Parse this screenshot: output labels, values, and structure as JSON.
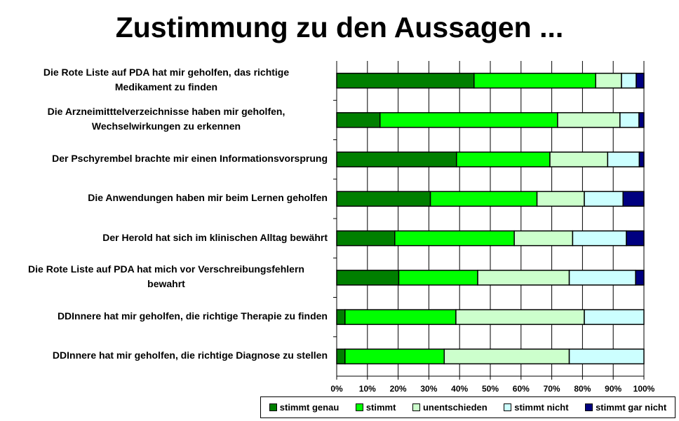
{
  "chart_data": {
    "type": "bar",
    "orientation": "horizontal",
    "stacked": "percent",
    "title": "Zustimmung zu den Aussagen ...",
    "xlabel": "",
    "ylabel": "",
    "xlim": [
      0,
      100
    ],
    "x_ticks": [
      "0%",
      "10%",
      "20%",
      "30%",
      "40%",
      "50%",
      "60%",
      "70%",
      "80%",
      "90%",
      "100%"
    ],
    "grid": "vertical",
    "legend_position": "bottom",
    "categories": [
      "Die Rote Liste auf PDA hat mir geholfen, das richtige Medikament zu finden",
      "Die Arzneimitttelverzeichnisse haben mir geholfen, Wechselwirkungen zu erkennen",
      "Der Pschyrembel brachte mir einen Informationsvorsprung",
      "Die Anwendungen haben mir beim Lernen geholfen",
      "Der Herold hat sich im klinischen Alltag bewährt",
      "Die Rote Liste auf PDA hat mich vor Verschreibungsfehlern bewahrt",
      "DDInnere hat mir geholfen, die richtige Therapie zu finden",
      "DDInnere hat mir geholfen, die richtige Diagnose zu stellen"
    ],
    "category_lines": [
      [
        "Die Rote Liste auf PDA hat mir geholfen, das richtige",
        "Medikament zu finden"
      ],
      [
        "Die Arzneimitttelverzeichnisse haben mir geholfen,",
        "Wechselwirkungen zu erkennen"
      ],
      [
        "Der Pschyrembel brachte mir einen Informationsvorsprung"
      ],
      [
        "Die Anwendungen haben mir beim Lernen geholfen"
      ],
      [
        "Der Herold hat sich im klinischen Alltag bewährt"
      ],
      [
        "Die Rote Liste auf PDA hat mich vor Verschreibungsfehlern",
        "bewahrt"
      ],
      [
        "DDInnere hat mir geholfen, die richtige Therapie zu finden"
      ],
      [
        "DDInnere hat mir geholfen, die richtige Diagnose zu stellen"
      ]
    ],
    "series": [
      {
        "name": "stimmt genau",
        "color": "#007f00",
        "values": [
          44.7,
          14.1,
          39.0,
          30.5,
          18.9,
          20.2,
          2.7,
          2.7
        ]
      },
      {
        "name": "stimmt",
        "color": "#00ff00",
        "values": [
          39.6,
          57.8,
          30.4,
          34.7,
          38.9,
          25.7,
          36.1,
          32.3
        ]
      },
      {
        "name": "unentschieden",
        "color": "#ccffcc",
        "values": [
          8.4,
          20.3,
          18.8,
          15.4,
          19.0,
          29.8,
          41.8,
          40.7
        ]
      },
      {
        "name": "stimmt nicht",
        "color": "#ccffff",
        "values": [
          4.8,
          6.2,
          10.3,
          12.6,
          17.5,
          21.6,
          19.4,
          24.3
        ]
      },
      {
        "name": "stimmt gar nicht",
        "color": "#000080",
        "values": [
          2.5,
          1.6,
          1.5,
          6.8,
          5.7,
          2.7,
          0,
          0
        ]
      }
    ]
  }
}
